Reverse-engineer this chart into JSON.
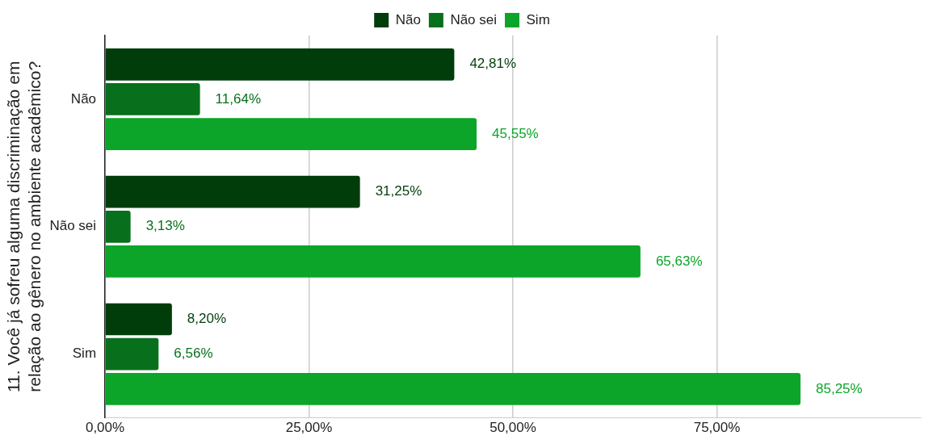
{
  "chart_data": {
    "type": "bar",
    "orientation": "horizontal",
    "ylabel": "11. Você já sofreu alguma discriminação em relação ao gênero no ambiente acadêmico?",
    "categories": [
      "Não",
      "Não sei",
      "Sim"
    ],
    "series": [
      {
        "name": "Não",
        "color": "#003d0b",
        "values": [
          42.81,
          31.25,
          8.2
        ],
        "value_labels": [
          "42,81%",
          "31,25%",
          "8,20%"
        ]
      },
      {
        "name": "Não sei",
        "color": "#08701c",
        "values": [
          11.64,
          3.13,
          6.56
        ],
        "value_labels": [
          "11,64%",
          "3,13%",
          "6,56%"
        ]
      },
      {
        "name": "Sim",
        "color": "#0ca52a",
        "values": [
          45.55,
          65.63,
          85.25
        ],
        "value_labels": [
          "45,55%",
          "65,63%",
          "85,25%"
        ]
      }
    ],
    "xlim": [
      0,
      100
    ],
    "xticks": [
      {
        "value": 0,
        "label": "0,00%"
      },
      {
        "value": 25,
        "label": "25,00%"
      },
      {
        "value": 50,
        "label": "50,00%"
      },
      {
        "value": 75,
        "label": "75,00%"
      }
    ],
    "grid": "x",
    "legend": "top"
  }
}
